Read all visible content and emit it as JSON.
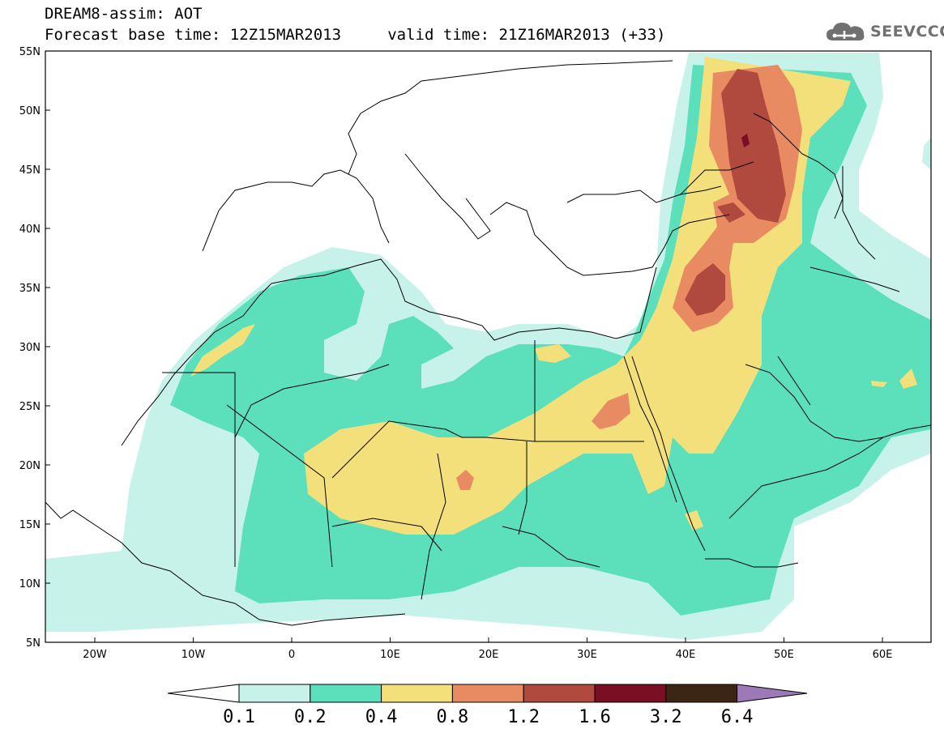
{
  "title_line1": "DREAM8-assim: AOT",
  "title_line2": "Forecast base time: 12Z15MAR2013     valid time: 21Z16MAR2013 (+33)",
  "logo_text": "SEEVCCC",
  "axes": {
    "lat_ticks": [
      "55N",
      "50N",
      "45N",
      "40N",
      "35N",
      "30N",
      "25N",
      "20N",
      "15N",
      "10N",
      "5N"
    ],
    "lon_ticks": [
      "20W",
      "10W",
      "0",
      "10E",
      "20E",
      "30E",
      "40E",
      "50E",
      "60E"
    ]
  },
  "colorbar": {
    "labels": [
      "0.1",
      "0.2",
      "0.4",
      "0.8",
      "1.2",
      "1.6",
      "3.2",
      "6.4"
    ],
    "colors": [
      "#ffffff",
      "#c7f2ea",
      "#5ce0bb",
      "#f4e07a",
      "#e88a62",
      "#b14a3e",
      "#7a0e23",
      "#3b2616",
      "#9e79b8"
    ]
  },
  "fields": {
    "level1_color": "#c7f2ea",
    "level2_color": "#5ce0bb",
    "level3_color": "#f4e07a",
    "level4_color": "#e88a62",
    "level5_color": "#b14a3e",
    "level6_color": "#7a0e23"
  }
}
